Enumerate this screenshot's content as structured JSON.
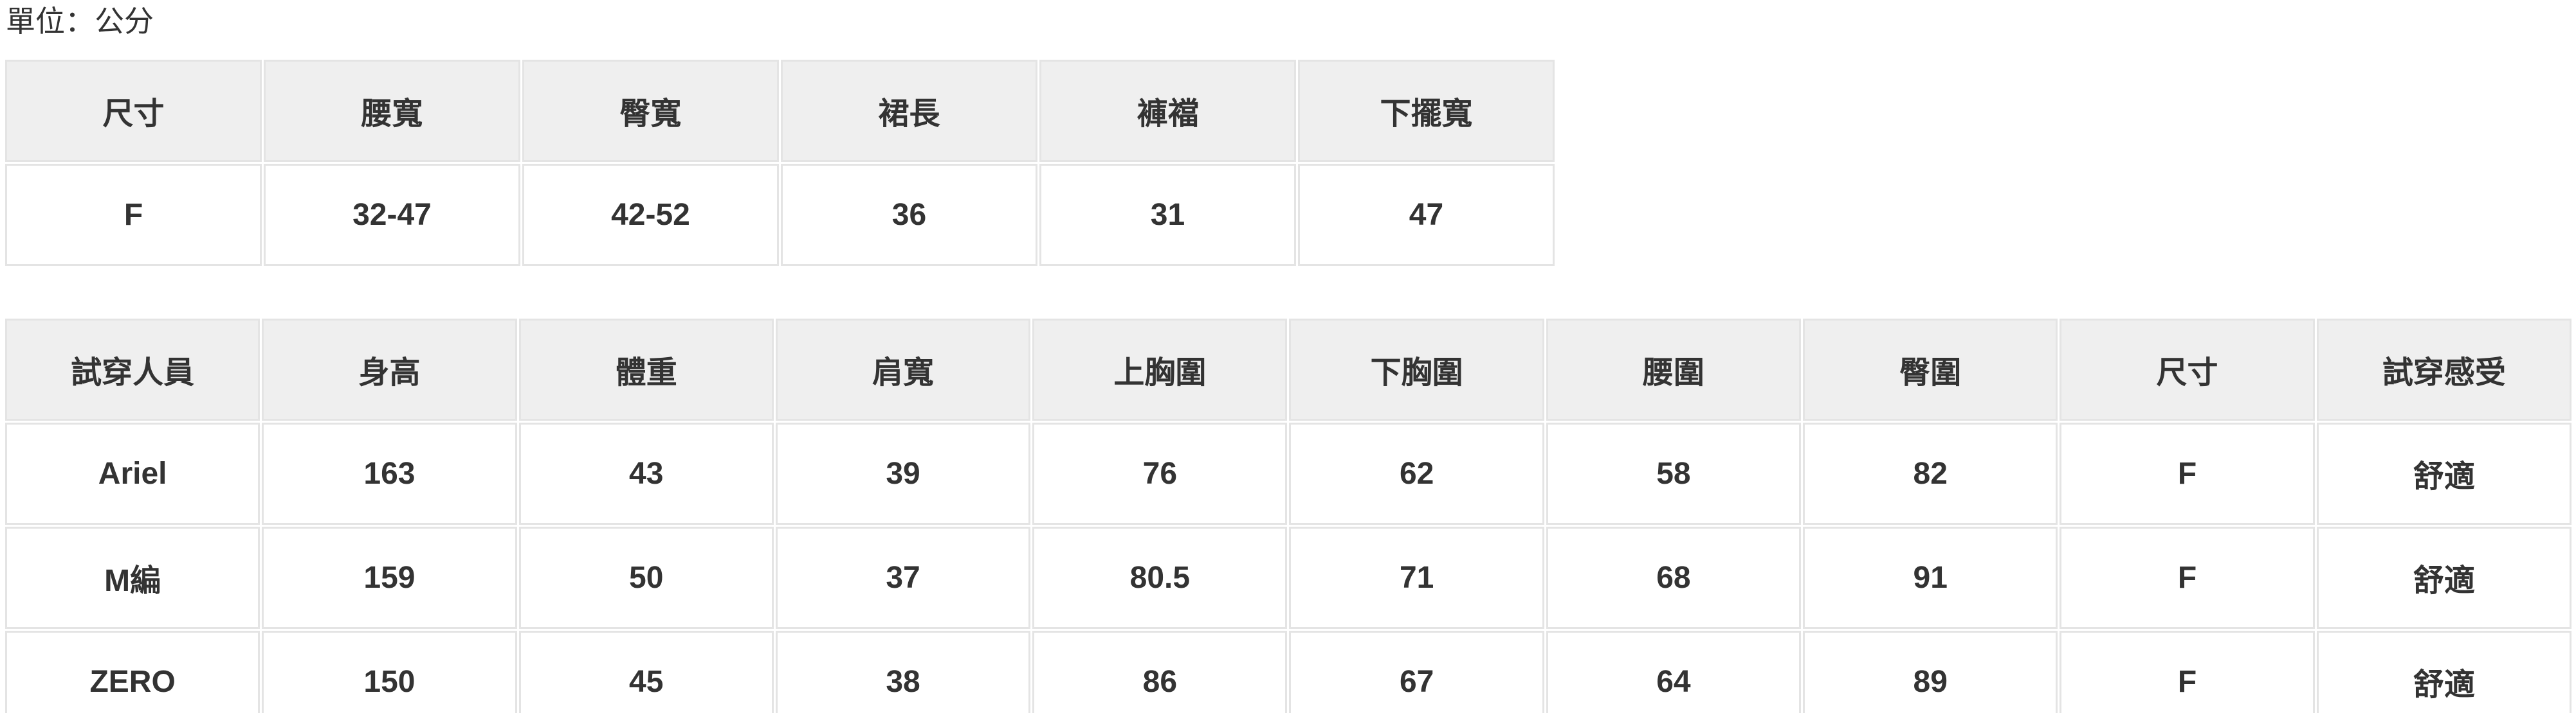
{
  "page": {
    "unit_label": "單位：公分"
  },
  "colors": {
    "header_bg": "#efefef",
    "cell_bg": "#ffffff",
    "border": "#e4e4e4",
    "text": "#333333"
  },
  "size_table": {
    "headers": [
      "尺寸",
      "腰寬",
      "臀寬",
      "裙長",
      "褲襠",
      "下擺寬"
    ],
    "rows": [
      [
        "F",
        "32-47",
        "42-52",
        "36",
        "31",
        "47"
      ]
    ]
  },
  "fitting_table": {
    "headers": [
      "試穿人員",
      "身高",
      "體重",
      "肩寬",
      "上胸圍",
      "下胸圍",
      "腰圍",
      "臀圍",
      "尺寸",
      "試穿感受"
    ],
    "rows": [
      [
        "Ariel",
        "163",
        "43",
        "39",
        "76",
        "62",
        "58",
        "82",
        "F",
        "舒適"
      ],
      [
        "M編",
        "159",
        "50",
        "37",
        "80.5",
        "71",
        "68",
        "91",
        "F",
        "舒適"
      ],
      [
        "ZERO",
        "150",
        "45",
        "38",
        "86",
        "67",
        "64",
        "89",
        "F",
        "舒適"
      ]
    ]
  }
}
